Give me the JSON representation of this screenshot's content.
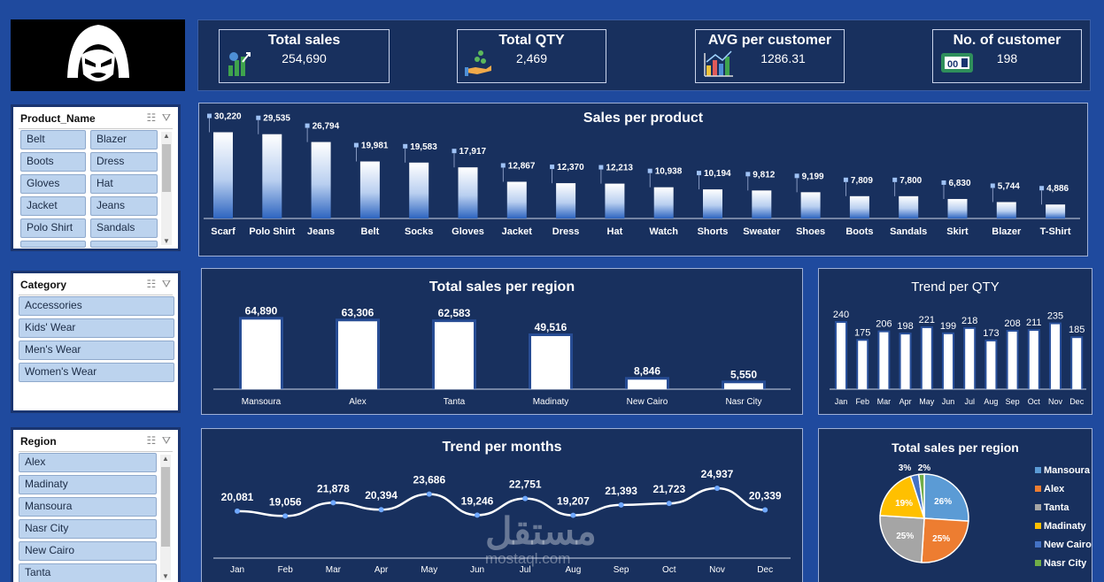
{
  "kpis": [
    {
      "title": "Total sales",
      "value": "254,690",
      "icon": "money-growth-icon"
    },
    {
      "title": "Total QTY",
      "value": "2,469",
      "icon": "coins-hand-icon"
    },
    {
      "title": "AVG per customer",
      "value": "1286.31",
      "icon": "bar-chart-icon"
    },
    {
      "title": "No. of customer",
      "value": "198",
      "icon": "counter-icon"
    }
  ],
  "slicers": {
    "product": {
      "header": "Product_Name",
      "items": [
        "Belt",
        "Blazer",
        "Boots",
        "Dress",
        "Gloves",
        "Hat",
        "Jacket",
        "Jeans",
        "Polo Shirt",
        "Sandals"
      ]
    },
    "category": {
      "header": "Category",
      "items": [
        "Accessories",
        "Kids' Wear",
        "Men's Wear",
        "Women's Wear"
      ]
    },
    "region": {
      "header": "Region",
      "items": [
        "Alex",
        "Madinaty",
        "Mansoura",
        "Nasr City",
        "New Cairo",
        "Tanta"
      ]
    }
  },
  "watermark": {
    "arabic": "مستقل",
    "latin": "mostaql.com"
  },
  "colors": {
    "bg": "#1f4a9e",
    "panel": "#18305e",
    "pie": [
      "#5b9bd5",
      "#ed7d31",
      "#a5a5a5",
      "#ffc000",
      "#4472c4",
      "#70ad47"
    ]
  },
  "chart_data": [
    {
      "type": "bar",
      "title": "Sales per product",
      "categories": [
        "Scarf",
        "Polo Shirt",
        "Jeans",
        "Belt",
        "Socks",
        "Gloves",
        "Jacket",
        "Dress",
        "Hat",
        "Watch",
        "Shorts",
        "Sweater",
        "Shoes",
        "Boots",
        "Sandals",
        "Skirt",
        "Blazer",
        "T-Shirt"
      ],
      "values": [
        30220,
        29535,
        26794,
        19981,
        19583,
        17917,
        12867,
        12370,
        12213,
        10938,
        10194,
        9812,
        9199,
        7809,
        7800,
        6830,
        5744,
        4886
      ],
      "labels": [
        "30,220",
        "29,535",
        "26,794",
        "19,981",
        "19,583",
        "17,917",
        "12,867",
        "12,370",
        "12,213",
        "10,938",
        "10,194",
        "9,812",
        "9,199",
        "7,809",
        "7,800",
        "6,830",
        "5,744",
        "4,886"
      ]
    },
    {
      "type": "bar",
      "title": "Total sales per region",
      "categories": [
        "Mansoura",
        "Alex",
        "Tanta",
        "Madinaty",
        "New Cairo",
        "Nasr City"
      ],
      "values": [
        64890,
        63306,
        62583,
        49516,
        8846,
        5550
      ],
      "labels": [
        "64,890",
        "63,306",
        "62,583",
        "49,516",
        "8,846",
        "5,550"
      ]
    },
    {
      "type": "bar",
      "title": "Trend per QTY",
      "categories": [
        "Jan",
        "Feb",
        "Mar",
        "Apr",
        "May",
        "Jun",
        "Jul",
        "Aug",
        "Sep",
        "Oct",
        "Nov",
        "Dec"
      ],
      "values": [
        240,
        175,
        206,
        198,
        221,
        199,
        218,
        173,
        208,
        211,
        235,
        185
      ],
      "labels": [
        "240",
        "175",
        "206",
        "198",
        "221",
        "199",
        "218",
        "173",
        "208",
        "211",
        "235",
        "185"
      ]
    },
    {
      "type": "line",
      "title": "Trend per months",
      "categories": [
        "Jan",
        "Feb",
        "Mar",
        "Apr",
        "May",
        "Jun",
        "Jul",
        "Aug",
        "Sep",
        "Oct",
        "Nov",
        "Dec"
      ],
      "values": [
        20081,
        19056,
        21878,
        20394,
        23686,
        19246,
        22751,
        19207,
        21393,
        21723,
        24937,
        20339
      ],
      "labels": [
        "20,081",
        "19,056",
        "21,878",
        "20,394",
        "23,686",
        "19,246",
        "22,751",
        "19,207",
        "21,393",
        "21,723",
        "24,937",
        "20,339"
      ]
    },
    {
      "type": "pie",
      "title": "Total sales per region",
      "categories": [
        "Mansoura",
        "Alex",
        "Tanta",
        "Madinaty",
        "New Cairo",
        "Nasr City"
      ],
      "values": [
        26,
        25,
        25,
        19,
        3,
        2
      ],
      "labels": [
        "26%",
        "25%",
        "25%",
        "19%",
        "3%",
        "2%"
      ],
      "legend": "right"
    }
  ]
}
